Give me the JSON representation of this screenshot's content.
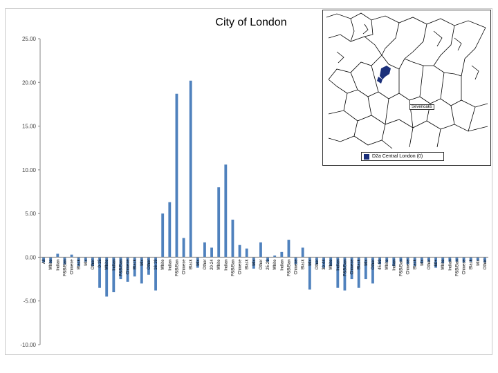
{
  "chart_data": {
    "type": "bar",
    "title": "City of London",
    "xlabel": "",
    "ylabel": "",
    "ylim": [
      -10,
      25
    ],
    "yticks": [
      "25.00",
      "20.00",
      "15.00",
      "10.00",
      "5.00",
      "0.00",
      "-5.00",
      "-10.00"
    ],
    "ytick_values": [
      25,
      20,
      15,
      10,
      5,
      0,
      -5,
      -10
    ],
    "grid": false,
    "bar_color": "#4f81bd",
    "categories": [
      "All",
      "White",
      "Indian",
      "P&B/Ban",
      "Chinese",
      "Black",
      "Mix",
      "Other",
      "0-15",
      "White",
      "Indian",
      "P&B/Ban",
      "Chinese",
      "Black",
      "Mix",
      "Other",
      "16-19",
      "White",
      "Indian",
      "P&B/Ban",
      "Chinese",
      "Black",
      "Mix",
      "Other",
      "20-24",
      "White",
      "Indian",
      "P&B/Ban",
      "Chinese",
      "Black",
      "Mix",
      "Other",
      "25-29",
      "White",
      "Indian",
      "P&B/Ban",
      "Chinese",
      "Black",
      "Mix",
      "Other",
      "30-44",
      "White",
      "Indian",
      "P&B/Ban",
      "Chinese",
      "Black",
      "Mix",
      "Other",
      "45-59",
      "White",
      "Indian",
      "P&B/Ban",
      "Chinese",
      "Black",
      "Mix",
      "Other",
      "60+",
      "White",
      "Indian",
      "P&B/Ban",
      "Chinese",
      "Black",
      "Mix",
      "Other"
    ],
    "values": [
      -0.6,
      -0.7,
      0.4,
      -0.8,
      0.3,
      -1.0,
      -0.5,
      -1.0,
      -3.5,
      -4.5,
      -4.0,
      -2.5,
      -2.8,
      -2.2,
      -3.0,
      -2.0,
      -3.8,
      5.0,
      6.3,
      18.7,
      2.2,
      20.2,
      -1.2,
      1.7,
      1.1,
      8.0,
      10.6,
      4.3,
      1.4,
      1.0,
      -1.3,
      1.7,
      -0.5,
      0.2,
      0.6,
      2.0,
      -0.8,
      1.1,
      -3.7,
      -0.8,
      -1.2,
      -1.0,
      -3.5,
      -3.8,
      -2.5,
      -3.5,
      -2.5,
      -3.0,
      -0.8,
      -0.6,
      -1.0,
      -0.5,
      -0.8,
      -1.0,
      -0.7,
      -0.5,
      -1.2,
      -0.7,
      -0.5,
      -0.5,
      -0.6,
      -0.5,
      -0.4,
      -0.6
    ]
  },
  "map": {
    "legend_label": "D2a Central London  (0)",
    "legend_color": "#1a2f7a",
    "place_label": "Sevenoaks"
  }
}
